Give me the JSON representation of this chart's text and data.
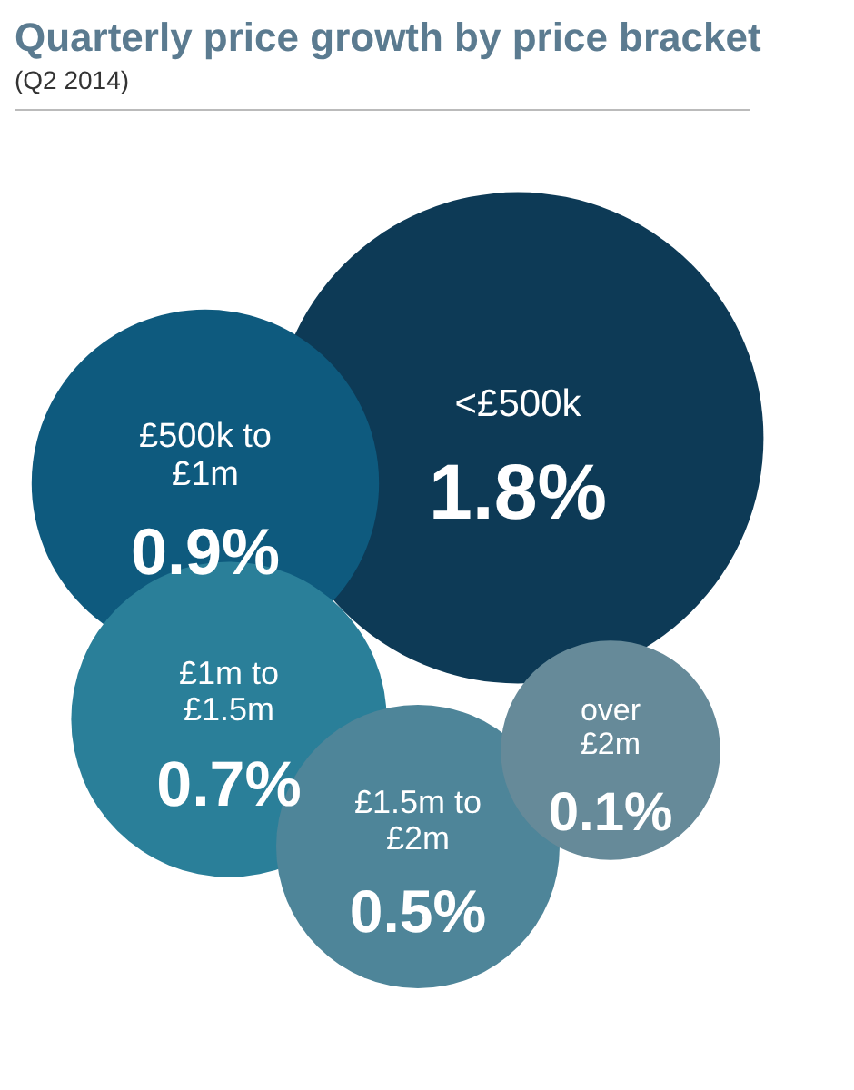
{
  "chart_data": {
    "type": "other",
    "title": "Quarterly price growth by price bracket",
    "subtitle": "(Q2 2014)",
    "categories": [
      "<£500k",
      "£500k to £1m",
      "£1m to £1.5m",
      "£1.5m to £2m",
      "over £2m"
    ],
    "values": [
      1.8,
      0.9,
      0.7,
      0.5,
      0.1
    ],
    "value_labels": [
      "1.8%",
      "0.9%",
      "0.7%",
      "0.5%",
      "0.1%"
    ],
    "colors": [
      "#0d3a56",
      "#0e5a7e",
      "#2a7f99",
      "#4e8599",
      "#668a99"
    ]
  }
}
